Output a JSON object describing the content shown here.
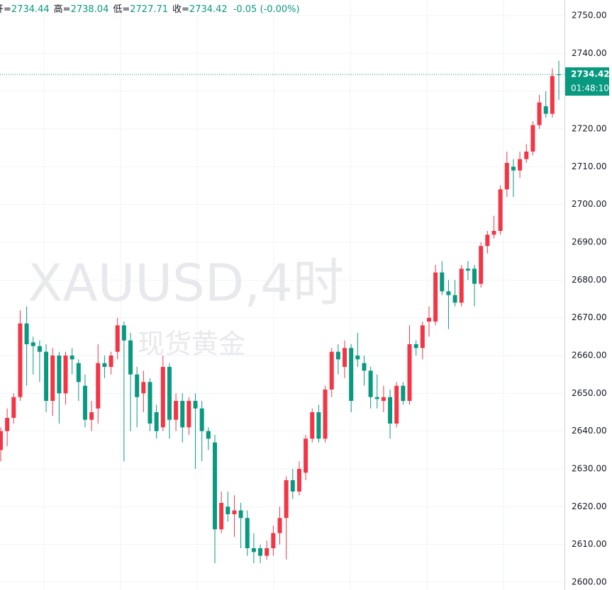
{
  "chart_data": {
    "type": "candlestick",
    "header_labels": [
      "开=",
      "高=",
      "低=",
      "收="
    ],
    "change": "-0.05 (-0.00%)",
    "countdown": "01:48:10",
    "watermark": "XAUUSD,4时",
    "watermark_sub": "现货黄金",
    "up_color": "#f23645",
    "down_color": "#089981",
    "ylim": [
      2600,
      2750
    ],
    "yticks": [
      {
        "value": 2600,
        "label": "2600.00"
      },
      {
        "value": 2610,
        "label": "2610.00"
      },
      {
        "value": 2620,
        "label": "2620.00"
      },
      {
        "value": 2630,
        "label": "2630.00"
      },
      {
        "value": 2640,
        "label": "2640.00"
      },
      {
        "value": 2650,
        "label": "2650.00"
      },
      {
        "value": 2660,
        "label": "2660.00"
      },
      {
        "value": 2670,
        "label": "2670.00"
      },
      {
        "value": 2680,
        "label": "2680.00"
      },
      {
        "value": 2690,
        "label": "2690.00"
      },
      {
        "value": 2700,
        "label": "2700.00"
      },
      {
        "value": 2710,
        "label": "2710.00"
      },
      {
        "value": 2720,
        "label": "2720.00"
      },
      {
        "value": 2730,
        "label": "2730.00"
      },
      {
        "value": 2740,
        "label": "2740.00"
      },
      {
        "value": 2750,
        "label": "2750.00"
      }
    ],
    "grid": true,
    "open": [
      2635,
      2640,
      2643.5,
      2649,
      2668.5,
      2663.5,
      2662.5,
      2661,
      2648,
      2660,
      2650,
      2660,
      2658,
      2652,
      2643,
      2646,
      2658,
      2657,
      2661,
      2668,
      2664,
      2655,
      2650,
      2653,
      2645,
      2641,
      2657,
      2643,
      2648,
      2641,
      2648,
      2646,
      2640,
      2637,
      2614,
      2620,
      2618,
      2619,
      2617,
      2609,
      2609,
      2607,
      2609,
      2613,
      2617,
      2627,
      2624,
      2629,
      2638,
      2645,
      2638,
      2651,
      2661,
      2657,
      2662,
      2660,
      2658,
      2656,
      2649,
      2648,
      2649,
      2642,
      2652,
      2648,
      2663,
      2662,
      2669,
      2669,
      2682,
      2677,
      2676,
      2674,
      2683,
      2683,
      2679,
      2689,
      2692,
      2693,
      2704,
      2710,
      2709,
      2712,
      2714,
      2721,
      2726,
      2724,
      2734.44
    ],
    "close": [
      2640,
      2643.5,
      2649,
      2668.5,
      2663,
      2662.5,
      2661,
      2648,
      2660,
      2650,
      2660,
      2659,
      2653,
      2643,
      2645,
      2658,
      2657,
      2660,
      2668,
      2664,
      2655,
      2649,
      2653,
      2642,
      2640,
      2657,
      2643,
      2648,
      2641,
      2648,
      2646,
      2640,
      2638,
      2614,
      2621,
      2618,
      2619,
      2617,
      2609,
      2608,
      2607,
      2609,
      2613,
      2617,
      2627,
      2624,
      2630,
      2638,
      2645,
      2638,
      2651,
      2661,
      2659,
      2662,
      2648,
      2659,
      2656,
      2649,
      2648.5,
      2649,
      2642,
      2652,
      2648,
      2663,
      2662,
      2668,
      2670,
      2682,
      2677,
      2676,
      2674,
      2683,
      2682.5,
      2679,
      2689,
      2692,
      2693,
      2704,
      2711,
      2709,
      2712,
      2714,
      2721,
      2727,
      2724,
      2734,
      2734.42
    ],
    "high": [
      2641,
      2646,
      2650,
      2672,
      2673,
      2665,
      2664,
      2663,
      2662,
      2661,
      2661,
      2662,
      2659,
      2655,
      2648,
      2663,
      2660,
      2661,
      2670,
      2669,
      2666,
      2657,
      2656,
      2654,
      2647,
      2660,
      2658,
      2650,
      2650,
      2649,
      2650,
      2648,
      2641,
      2639,
      2624,
      2624,
      2623,
      2621,
      2619,
      2613,
      2610,
      2611,
      2615,
      2620,
      2628,
      2630,
      2632,
      2639,
      2646,
      2647,
      2652,
      2662,
      2663,
      2664,
      2663,
      2666,
      2660,
      2657,
      2655,
      2652,
      2651,
      2653,
      2653,
      2668,
      2664,
      2669,
      2673,
      2684,
      2685,
      2680,
      2680,
      2684,
      2685,
      2684,
      2690,
      2693,
      2697,
      2705,
      2714,
      2712,
      2714,
      2716,
      2722,
      2729,
      2730,
      2736,
      2738.04
    ],
    "low": [
      2632,
      2636,
      2642,
      2648,
      2652,
      2655,
      2653,
      2645,
      2644,
      2642,
      2647,
      2655,
      2648,
      2641,
      2640,
      2642,
      2654,
      2655,
      2659,
      2632,
      2640,
      2641,
      2645,
      2640,
      2638,
      2640,
      2638,
      2640,
      2637,
      2639,
      2630,
      2632,
      2635,
      2605,
      2613,
      2616,
      2612,
      2609,
      2607,
      2605,
      2605,
      2606,
      2607,
      2610,
      2606,
      2622,
      2623,
      2627,
      2637,
      2637,
      2637,
      2649,
      2655,
      2654,
      2645,
      2657,
      2652,
      2646,
      2646,
      2645,
      2638,
      2641,
      2647,
      2647,
      2660,
      2659,
      2665,
      2668,
      2676,
      2667,
      2673,
      2673,
      2680,
      2673,
      2678,
      2687,
      2691,
      2692,
      2702,
      2702,
      2707,
      2711,
      2713,
      2720,
      2723,
      2723,
      2727.71
    ]
  }
}
